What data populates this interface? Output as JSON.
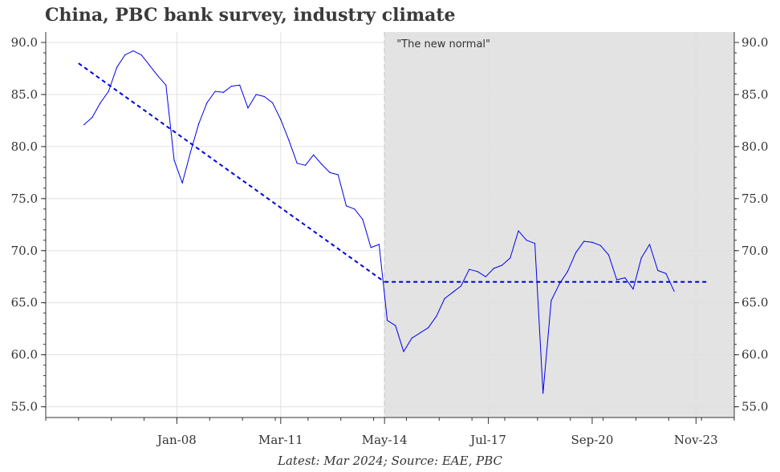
{
  "title": "China, PBC bank survey, industry climate",
  "caption": "Latest: Mar 2024; Source: EAE, PBC",
  "colors": {
    "series": "#0000ee",
    "trend": "#0000dd",
    "shade": "#e3e3e3",
    "grid": "#e0e0e0",
    "axis": "#333333",
    "divider": "#a0a0a0"
  },
  "chart_data": {
    "type": "line",
    "title": "China, PBC bank survey, industry climate",
    "xlabel": "",
    "ylabel": "",
    "ylim": [
      55.0,
      90.0
    ],
    "xlim": [
      "2004-01",
      "2025-01"
    ],
    "y_ticks": [
      "55.0",
      "60.0",
      "65.0",
      "70.0",
      "75.0",
      "80.0",
      "85.0",
      "90.0"
    ],
    "x_tick_labels": [
      {
        "date": "2008-01",
        "label": "Jan-08"
      },
      {
        "date": "2011-03",
        "label": "Mar-11"
      },
      {
        "date": "2014-05",
        "label": "May-14"
      },
      {
        "date": "2017-07",
        "label": "Jul-17"
      },
      {
        "date": "2020-09",
        "label": "Sep-20"
      },
      {
        "date": "2023-11",
        "label": "Nov-23"
      }
    ],
    "grid": true,
    "shaded_region": {
      "from": "2014-05",
      "to": "2025-01",
      "label": "\"The new normal\""
    },
    "series": [
      {
        "type": "line",
        "points": [
          [
            "2005-03",
            82.1
          ],
          [
            "2005-06",
            82.8
          ],
          [
            "2005-09",
            84.2
          ],
          [
            "2005-12",
            85.3
          ],
          [
            "2006-03",
            87.6
          ],
          [
            "2006-06",
            88.8
          ],
          [
            "2006-09",
            89.2
          ],
          [
            "2006-12",
            88.8
          ],
          [
            "2007-03",
            87.8
          ],
          [
            "2007-06",
            86.8
          ],
          [
            "2007-09",
            85.9
          ],
          [
            "2007-12",
            78.7
          ],
          [
            "2008-03",
            76.5
          ],
          [
            "2008-06",
            79.5
          ],
          [
            "2008-09",
            82.2
          ],
          [
            "2008-12",
            84.2
          ],
          [
            "2009-03",
            85.3
          ],
          [
            "2009-06",
            85.2
          ],
          [
            "2009-09",
            85.8
          ],
          [
            "2009-12",
            85.9
          ],
          [
            "2010-03",
            83.7
          ],
          [
            "2010-06",
            85.0
          ],
          [
            "2010-09",
            84.8
          ],
          [
            "2010-12",
            84.2
          ],
          [
            "2011-03",
            82.6
          ],
          [
            "2011-06",
            80.6
          ],
          [
            "2011-09",
            78.4
          ],
          [
            "2011-12",
            78.2
          ],
          [
            "2012-03",
            79.2
          ],
          [
            "2012-06",
            78.3
          ],
          [
            "2012-09",
            77.5
          ],
          [
            "2012-12",
            77.3
          ],
          [
            "2013-03",
            74.3
          ],
          [
            "2013-06",
            74.0
          ],
          [
            "2013-09",
            73.0
          ],
          [
            "2013-12",
            70.3
          ],
          [
            "2014-03",
            70.6
          ],
          [
            "2014-06",
            63.3
          ],
          [
            "2014-09",
            62.8
          ],
          [
            "2014-12",
            60.3
          ],
          [
            "2015-03",
            61.6
          ],
          [
            "2015-06",
            62.1
          ],
          [
            "2015-09",
            62.6
          ],
          [
            "2015-12",
            63.7
          ],
          [
            "2016-03",
            65.4
          ],
          [
            "2016-06",
            66.0
          ],
          [
            "2016-09",
            66.6
          ],
          [
            "2016-12",
            68.2
          ],
          [
            "2017-03",
            68.0
          ],
          [
            "2017-06",
            67.5
          ],
          [
            "2017-09",
            68.3
          ],
          [
            "2017-12",
            68.6
          ],
          [
            "2018-03",
            69.3
          ],
          [
            "2018-06",
            71.9
          ],
          [
            "2018-09",
            71.0
          ],
          [
            "2018-12",
            70.7
          ],
          [
            "2019-03",
            56.3
          ],
          [
            "2019-06",
            65.2
          ],
          [
            "2019-09",
            66.8
          ],
          [
            "2019-12",
            68.0
          ],
          [
            "2020-03",
            69.8
          ],
          [
            "2020-06",
            70.9
          ],
          [
            "2020-09",
            70.8
          ],
          [
            "2020-12",
            70.5
          ],
          [
            "2021-03",
            69.6
          ],
          [
            "2021-06",
            67.2
          ],
          [
            "2021-09",
            67.4
          ],
          [
            "2021-12",
            66.3
          ],
          [
            "2022-03",
            69.3
          ],
          [
            "2022-06",
            70.6
          ],
          [
            "2022-09",
            68.1
          ],
          [
            "2022-12",
            67.8
          ],
          [
            "2023-03",
            66.1
          ]
        ]
      }
    ],
    "trend_lines": [
      {
        "from": [
          "2005-01",
          88.0
        ],
        "to": [
          "2014-05",
          67.0
        ]
      },
      {
        "from": [
          "2014-05",
          67.0
        ],
        "to": [
          "2024-03",
          67.0
        ]
      }
    ]
  }
}
